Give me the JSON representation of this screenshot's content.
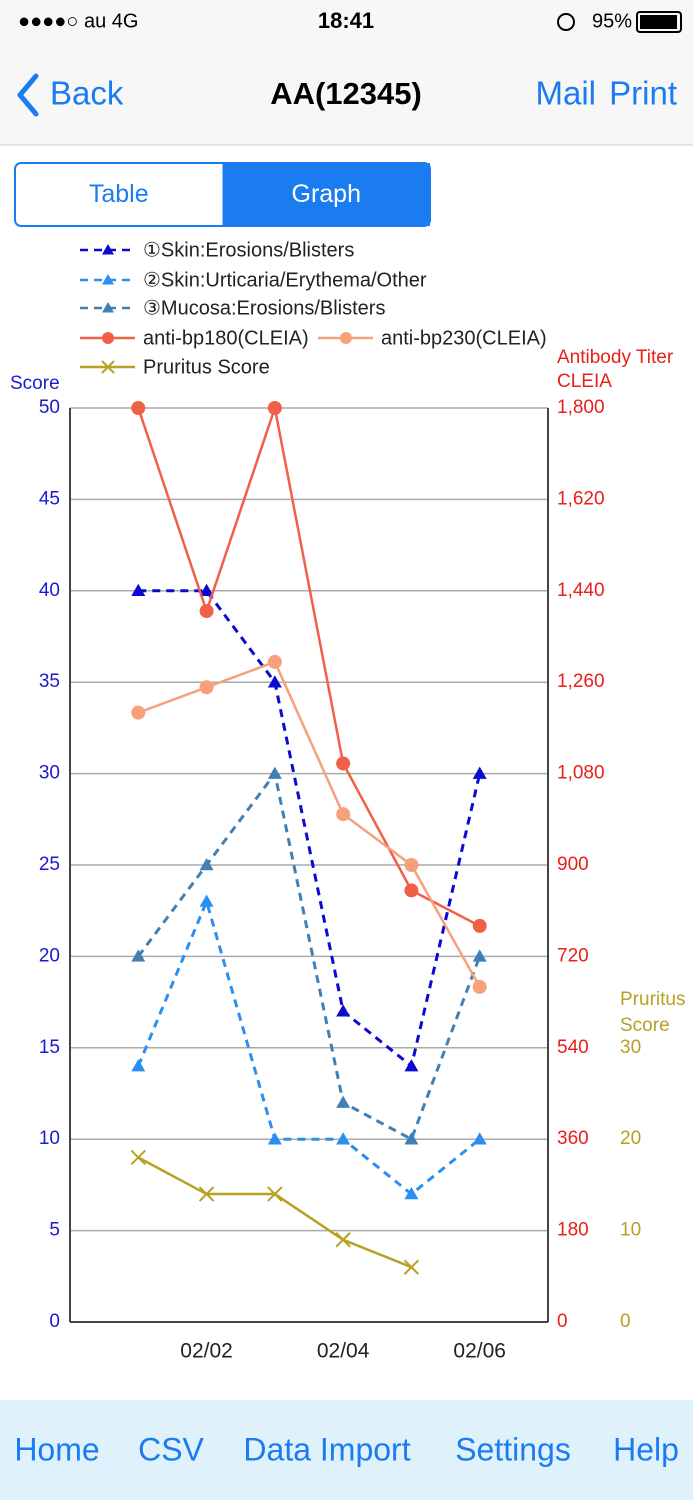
{
  "status_bar": {
    "carrier": "●●●●○ au  4G",
    "time": "18:41",
    "battery": "95%"
  },
  "nav": {
    "back": "Back",
    "title": "AA(12345)",
    "actions": [
      "Mail",
      "Print"
    ]
  },
  "segments": {
    "items": [
      "Table",
      "Graph"
    ],
    "selected": 1
  },
  "chart_data": {
    "type": "line",
    "ylabel": "Score",
    "y2label": [
      "Antibody Titer",
      "CLEIA"
    ],
    "y3label": [
      "Pruritus",
      "Score"
    ],
    "categories": [
      null,
      "02/02",
      null,
      "02/04",
      null,
      "02/06"
    ],
    "ylim": [
      0,
      50
    ],
    "yticks": [
      0,
      5,
      10,
      15,
      20,
      25,
      30,
      35,
      40,
      45,
      50
    ],
    "y2lim": [
      0,
      1800
    ],
    "y2ticks": [
      0,
      180,
      360,
      540,
      720,
      900,
      {
        "value": 1080,
        "label": "1,080"
      },
      {
        "value": 1260,
        "label": "1,260"
      },
      {
        "value": 1440,
        "label": "1,440"
      },
      {
        "value": 1620,
        "label": "1,620"
      },
      {
        "value": 1800,
        "label": "1,800"
      }
    ],
    "y3lim": [
      0,
      100
    ],
    "y3ticks": [
      0,
      10,
      20,
      30
    ],
    "grid": true,
    "series": [
      {
        "name": "①Skin:Erosions/Blisters",
        "color": "#0a0ad0",
        "marker": "triangle",
        "dashed": true,
        "values": [
          40,
          40,
          35,
          17,
          14,
          30
        ]
      },
      {
        "name": "②Skin:Urticaria/Erythema/Other",
        "color": "#2a8ff0",
        "marker": "triangle",
        "dashed": true,
        "values": [
          14,
          23,
          10,
          10,
          7,
          10
        ]
      },
      {
        "name": "③Mucosa:Erosions/Blisters",
        "color": "#4080b5",
        "marker": "triangle",
        "dashed": true,
        "values": [
          20,
          25,
          30,
          12,
          10,
          20
        ]
      },
      {
        "name": "anti-bp180(CLEIA)",
        "color": "#f06048",
        "marker": "circle",
        "dashed": false,
        "axis": "y2",
        "values": [
          1800,
          1400,
          1800,
          1100,
          850,
          780
        ]
      },
      {
        "name": "anti-bp230(CLEIA)",
        "color": "#f6a07c",
        "marker": "circle",
        "dashed": false,
        "axis": "y2",
        "values": [
          1200,
          1250,
          1300,
          1000,
          900,
          660
        ]
      },
      {
        "name": "Pruritus Score",
        "color": "#b8a024",
        "marker": "x",
        "dashed": false,
        "axis": "y3",
        "values": [
          18,
          14,
          14,
          9,
          6,
          null
        ]
      }
    ]
  },
  "tab_bar": [
    "Home",
    "CSV",
    "Data Import",
    "Settings",
    "Help"
  ]
}
